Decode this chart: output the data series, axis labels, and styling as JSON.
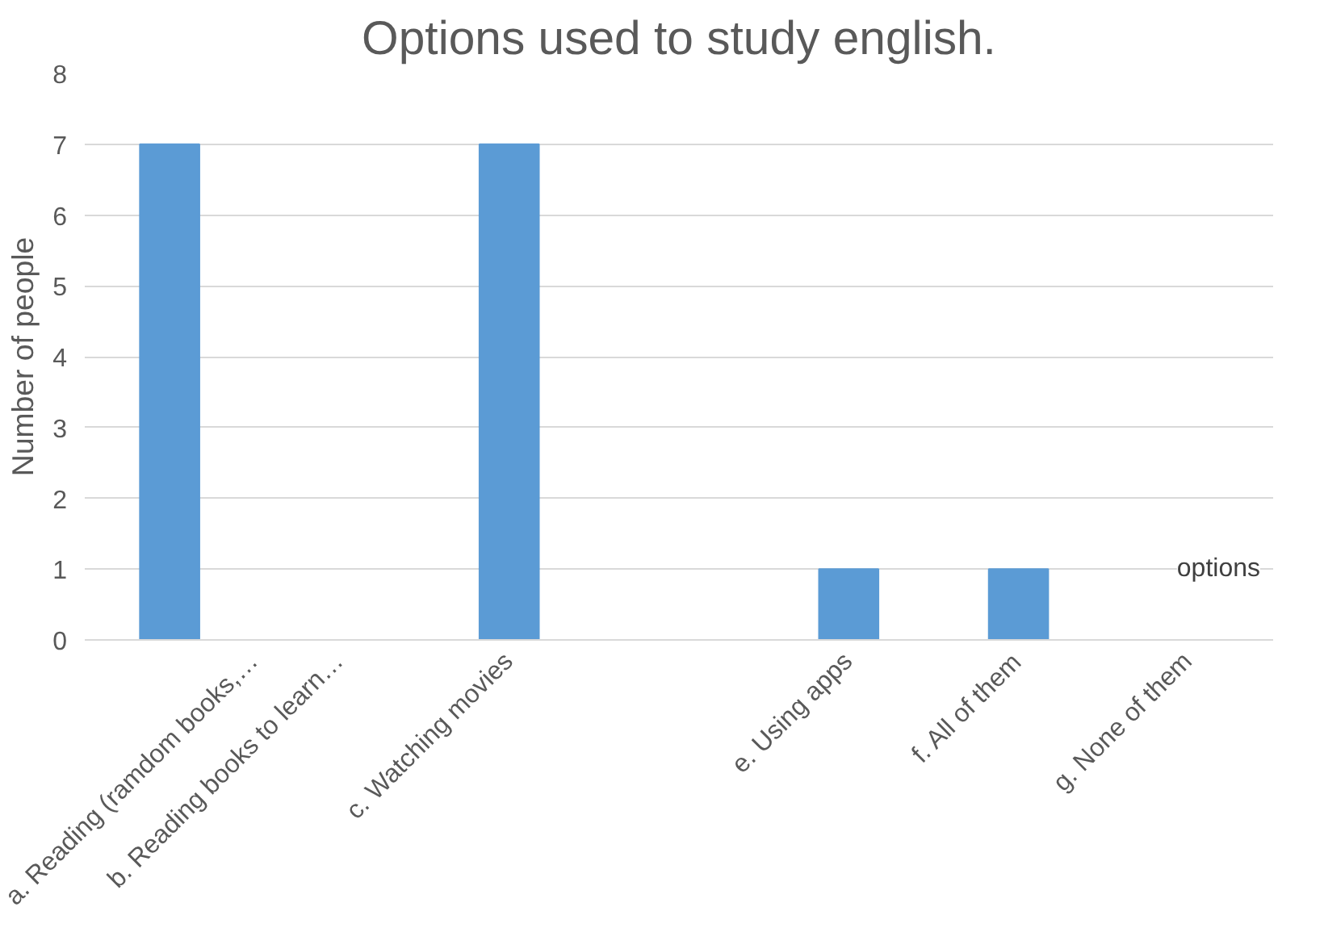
{
  "chart_data": {
    "type": "bar",
    "title": "Options used to study english.",
    "ylabel": "Number of people",
    "categories": [
      "a. Reading (ramdom books,…",
      "b. Reading books to learn…",
      "c. Watching movies",
      null,
      "e. Using apps",
      "f. All of them",
      "g. None of them"
    ],
    "values": [
      7,
      0,
      7,
      0,
      1,
      1,
      0
    ],
    "color": "#5b9bd5",
    "ylim": [
      0,
      8
    ],
    "yticks": [
      0,
      1,
      2,
      3,
      4,
      5,
      6,
      7,
      8
    ],
    "grid": "y",
    "annotations": [
      "options"
    ]
  }
}
